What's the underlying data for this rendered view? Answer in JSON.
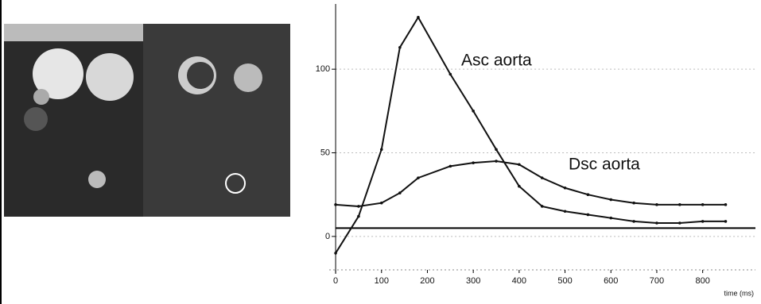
{
  "chart_data": {
    "type": "line",
    "annotations": [
      "Asc aorta",
      "Dsc aorta"
    ],
    "x_label": "time (ms)",
    "x": [
      0,
      50,
      100,
      140,
      180,
      250,
      300,
      350,
      400,
      450,
      500,
      550,
      600,
      650,
      700,
      750,
      800,
      850
    ],
    "series": [
      {
        "name": "Asc aorta",
        "color": "#111111",
        "values": [
          -10,
          12,
          52,
          113,
          131,
          97,
          75,
          52,
          30,
          18,
          15,
          13,
          11,
          9,
          8,
          8,
          9,
          9
        ]
      },
      {
        "name": "Dsc aorta",
        "color": "#111111",
        "values": [
          19,
          18,
          20,
          26,
          35,
          42,
          44,
          45,
          43,
          35,
          29,
          25,
          22,
          20,
          19,
          19,
          19,
          19
        ]
      }
    ],
    "baseline": 5,
    "xlim": [
      -14,
      915
    ],
    "ylim": [
      -20,
      139
    ],
    "xticks": [
      0,
      100,
      200,
      300,
      400,
      500,
      600,
      700,
      800
    ],
    "yticks": [
      0,
      50,
      100
    ],
    "grid": true
  }
}
